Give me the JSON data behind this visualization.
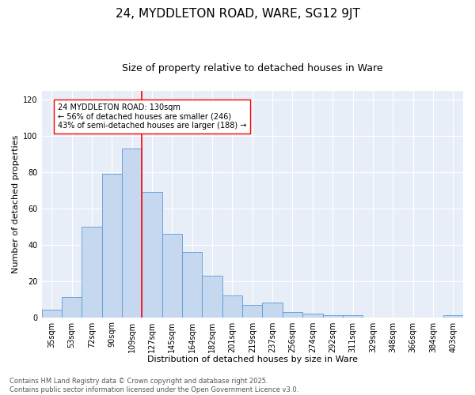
{
  "title_line1": "24, MYDDLETON ROAD, WARE, SG12 9JT",
  "title_line2": "Size of property relative to detached houses in Ware",
  "xlabel": "Distribution of detached houses by size in Ware",
  "ylabel": "Number of detached properties",
  "categories": [
    "35sqm",
    "53sqm",
    "72sqm",
    "90sqm",
    "109sqm",
    "127sqm",
    "145sqm",
    "164sqm",
    "182sqm",
    "201sqm",
    "219sqm",
    "237sqm",
    "256sqm",
    "274sqm",
    "292sqm",
    "311sqm",
    "329sqm",
    "348sqm",
    "366sqm",
    "384sqm",
    "403sqm"
  ],
  "bar_values": [
    4,
    11,
    50,
    79,
    93,
    69,
    46,
    36,
    23,
    12,
    7,
    8,
    3,
    2,
    1,
    1,
    0,
    0,
    0,
    0,
    1
  ],
  "bar_color": "#c5d8f0",
  "bar_edge_color": "#5b9bd5",
  "vline_index": 5,
  "vline_color": "red",
  "annotation_text": "24 MYDDLETON ROAD: 130sqm\n← 56% of detached houses are smaller (246)\n43% of semi-detached houses are larger (188) →",
  "annotation_box_color": "white",
  "annotation_box_edge": "red",
  "ylim": [
    0,
    125
  ],
  "yticks": [
    0,
    20,
    40,
    60,
    80,
    100,
    120
  ],
  "background_color": "#e8eef7",
  "footer_text": "Contains HM Land Registry data © Crown copyright and database right 2025.\nContains public sector information licensed under the Open Government Licence v3.0.",
  "title_fontsize": 11,
  "subtitle_fontsize": 9,
  "axis_label_fontsize": 8,
  "tick_fontsize": 7,
  "annotation_fontsize": 7,
  "footer_fontsize": 6
}
